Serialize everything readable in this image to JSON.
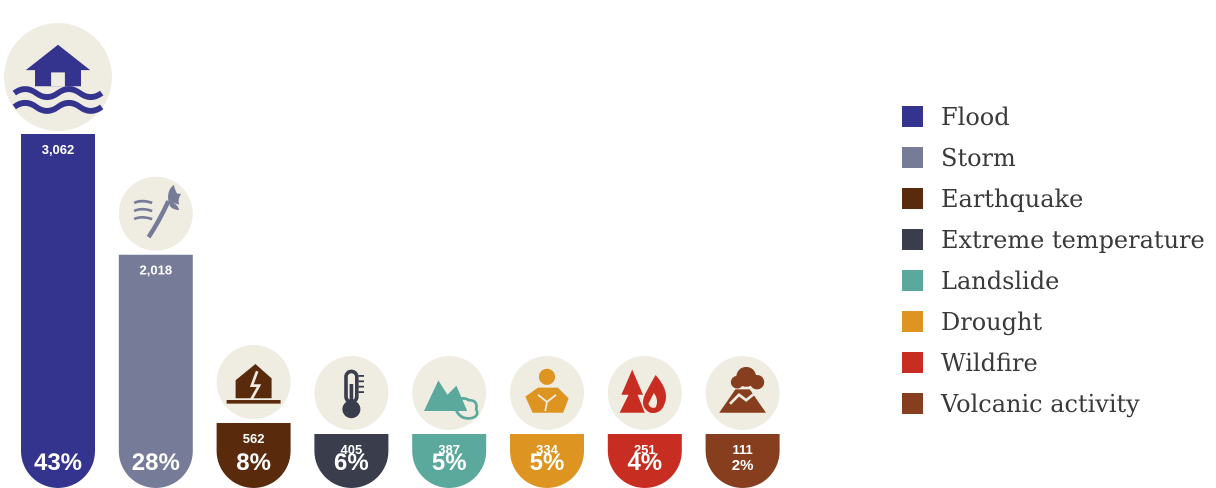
{
  "chart_data": {
    "type": "bar",
    "categories": [
      "Flood",
      "Storm",
      "Earthquake",
      "Extreme temperature",
      "Landslide",
      "Drought",
      "Wildfire",
      "Volcanic activity"
    ],
    "values": [
      3062,
      2018,
      562,
      405,
      387,
      334,
      251,
      111
    ],
    "value_labels": [
      "3,062",
      "2,018",
      "562",
      "405",
      "387",
      "334",
      "251",
      "111"
    ],
    "percentages": [
      "43%",
      "28%",
      "8%",
      "6%",
      "5%",
      "5%",
      "4%",
      "2%"
    ],
    "colors": [
      "#34348f",
      "#767b98",
      "#5a2a0c",
      "#393d4c",
      "#5aa99c",
      "#dd9421",
      "#c82d21",
      "#863e1e"
    ],
    "icons": [
      "flood-house-icon",
      "storm-tree-icon",
      "earthquake-house-icon",
      "thermometer-icon",
      "landslide-icon",
      "drought-sun-icon",
      "wildfire-icon",
      "volcano-icon"
    ],
    "legend_position": "right",
    "grid": false
  },
  "legend": {
    "items": [
      {
        "label": "Flood",
        "color": "#34348f"
      },
      {
        "label": "Storm",
        "color": "#767b98"
      },
      {
        "label": "Earthquake",
        "color": "#5a2a0c"
      },
      {
        "label": "Extreme temperature",
        "color": "#393d4c"
      },
      {
        "label": "Landslide",
        "color": "#5aa99c"
      },
      {
        "label": "Drought",
        "color": "#dd9421"
      },
      {
        "label": "Wildfire",
        "color": "#c82d21"
      },
      {
        "label": "Volcanic activity",
        "color": "#863e1e"
      }
    ]
  }
}
